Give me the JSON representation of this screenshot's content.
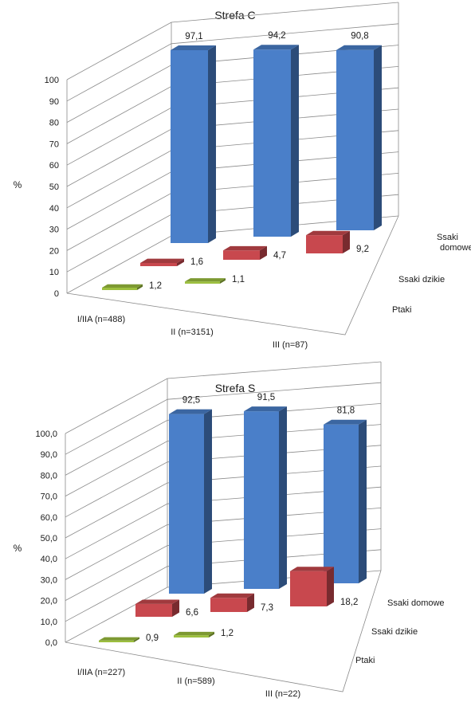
{
  "chart_data": [
    {
      "type": "bar",
      "title": "Strefa C",
      "ylabel": "%",
      "ylim": [
        0,
        100
      ],
      "yticks": [
        "0",
        "10",
        "20",
        "30",
        "40",
        "50",
        "60",
        "70",
        "80",
        "90",
        "100"
      ],
      "categories": [
        "I/IIA (n=488)",
        "II (n=3151)",
        "III (n=87)"
      ],
      "series": [
        {
          "name": "Ssaki domowe",
          "values": [
            97.1,
            94.2,
            90.8
          ],
          "labels": [
            "97,1",
            "94,2",
            "90,8"
          ]
        },
        {
          "name": "Ssaki dzikie",
          "values": [
            1.6,
            4.7,
            9.2
          ],
          "labels": [
            "1,6",
            "4,7",
            "9,2"
          ]
        },
        {
          "name": "Ptaki",
          "values": [
            1.2,
            1.1,
            0
          ],
          "labels": [
            "1,2",
            "1,1",
            ""
          ]
        }
      ],
      "depth_labels": [
        "Ssaki\ndomowe",
        "Ssaki dzikie",
        "Ptaki"
      ]
    },
    {
      "type": "bar",
      "title": "Strefa S",
      "ylabel": "%",
      "ylim": [
        0,
        100
      ],
      "yticks": [
        "0,0",
        "10,0",
        "20,0",
        "30,0",
        "40,0",
        "50,0",
        "60,0",
        "70,0",
        "80,0",
        "90,0",
        "100,0"
      ],
      "categories": [
        "I/IIA (n=227)",
        "II (n=589)",
        "III (n=22)"
      ],
      "series": [
        {
          "name": "Ssaki domowe",
          "values": [
            92.5,
            91.5,
            81.8
          ],
          "labels": [
            "92,5",
            "91,5",
            "81,8"
          ]
        },
        {
          "name": "Ssaki dzikie",
          "values": [
            6.6,
            7.3,
            18.2
          ],
          "labels": [
            "6,6",
            "7,3",
            "18,2"
          ]
        },
        {
          "name": "Ptaki",
          "values": [
            0.9,
            1.2,
            0
          ],
          "labels": [
            "0,9",
            "1,2",
            ""
          ]
        }
      ],
      "depth_labels": [
        "Ssaki domowe",
        "Ssaki dzikie",
        "Ptaki"
      ]
    }
  ],
  "colors": {
    "Ssaki domowe": "#4a7fc9",
    "Ssaki dzikie": "#c8484e",
    "Ptaki": "#9cbf3e"
  }
}
